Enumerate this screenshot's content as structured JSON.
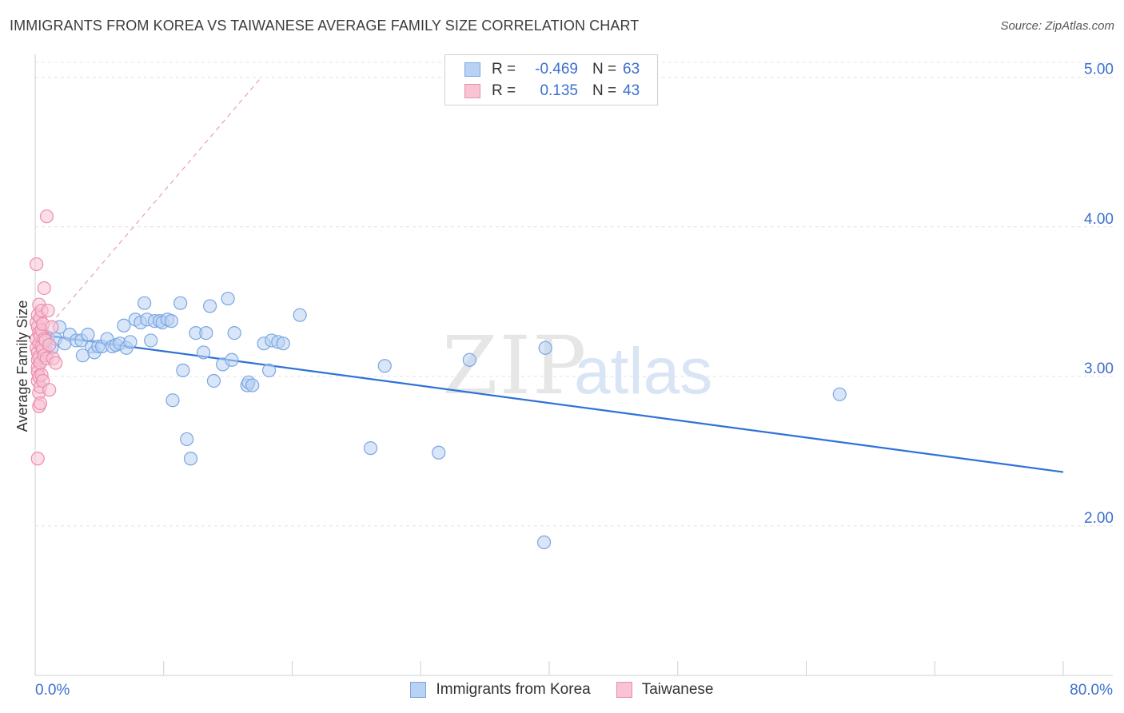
{
  "title": "IMMIGRANTS FROM KOREA VS TAIWANESE AVERAGE FAMILY SIZE CORRELATION CHART",
  "source": "Source: ZipAtlas.com",
  "watermark": {
    "zip": "ZIP",
    "atlas": "atlas"
  },
  "colors": {
    "blue_fill": "#b9d1f3",
    "blue_stroke": "#7aa6e3",
    "blue_line": "#2f72d6",
    "pink_fill": "#f8c3d3",
    "pink_stroke": "#ec8daf",
    "pink_line": "#e8a0b8",
    "axis_text": "#3b6fd0",
    "grid": "#e4e4e4"
  },
  "legend": {
    "rows": [
      {
        "r_label": "R =",
        "r_value": "-0.469",
        "n_label": "N =",
        "n_value": "63"
      },
      {
        "r_label": "R =",
        "r_value": "0.135",
        "n_label": "N =",
        "n_value": "43"
      }
    ]
  },
  "bottom_legend": [
    "Immigrants from Korea",
    "Taiwanese"
  ],
  "chart_data": {
    "type": "scatter",
    "title": "IMMIGRANTS FROM KOREA VS TAIWANESE AVERAGE FAMILY SIZE CORRELATION CHART",
    "xlabel": "",
    "ylabel": "Average Family Size",
    "xlim": [
      0,
      80
    ],
    "ylim": [
      1.0,
      5.1
    ],
    "x_tick_labels": [
      "0.0%",
      "80.0%"
    ],
    "y_ticks": [
      2.0,
      3.0,
      4.0,
      5.0
    ],
    "y_tick_labels": [
      "2.00",
      "3.00",
      "4.00",
      "5.00"
    ],
    "series": [
      {
        "name": "Immigrants from Korea",
        "trend": {
          "x": [
            0.3,
            80
          ],
          "y": [
            3.28,
            2.36
          ]
        },
        "points": [
          [
            0.6,
            3.27
          ],
          [
            0.8,
            3.18
          ],
          [
            1.0,
            3.26
          ],
          [
            1.3,
            3.19
          ],
          [
            1.6,
            3.25
          ],
          [
            1.9,
            3.33
          ],
          [
            2.3,
            3.22
          ],
          [
            2.7,
            3.28
          ],
          [
            3.2,
            3.24
          ],
          [
            3.6,
            3.24
          ],
          [
            3.7,
            3.14
          ],
          [
            4.1,
            3.28
          ],
          [
            4.4,
            3.2
          ],
          [
            4.6,
            3.16
          ],
          [
            4.9,
            3.2
          ],
          [
            5.2,
            3.2
          ],
          [
            5.6,
            3.25
          ],
          [
            6.0,
            3.2
          ],
          [
            6.3,
            3.21
          ],
          [
            6.6,
            3.22
          ],
          [
            6.9,
            3.34
          ],
          [
            7.1,
            3.19
          ],
          [
            7.4,
            3.23
          ],
          [
            7.8,
            3.38
          ],
          [
            8.2,
            3.36
          ],
          [
            8.5,
            3.49
          ],
          [
            8.7,
            3.38
          ],
          [
            9.0,
            3.24
          ],
          [
            9.3,
            3.37
          ],
          [
            9.7,
            3.37
          ],
          [
            9.9,
            3.36
          ],
          [
            10.3,
            3.38
          ],
          [
            10.6,
            3.37
          ],
          [
            10.7,
            2.84
          ],
          [
            11.3,
            3.49
          ],
          [
            11.5,
            3.04
          ],
          [
            11.8,
            2.58
          ],
          [
            12.1,
            2.45
          ],
          [
            12.5,
            3.29
          ],
          [
            13.1,
            3.16
          ],
          [
            13.3,
            3.29
          ],
          [
            13.6,
            3.47
          ],
          [
            13.9,
            2.97
          ],
          [
            14.6,
            3.08
          ],
          [
            15.0,
            3.52
          ],
          [
            15.3,
            3.11
          ],
          [
            15.5,
            3.29
          ],
          [
            16.5,
            2.94
          ],
          [
            16.6,
            2.96
          ],
          [
            16.9,
            2.94
          ],
          [
            17.8,
            3.22
          ],
          [
            18.2,
            3.04
          ],
          [
            18.4,
            3.24
          ],
          [
            18.9,
            3.23
          ],
          [
            19.3,
            3.22
          ],
          [
            20.6,
            3.41
          ],
          [
            26.1,
            2.52
          ],
          [
            27.2,
            3.07
          ],
          [
            31.4,
            2.49
          ],
          [
            33.8,
            3.11
          ],
          [
            39.6,
            1.89
          ],
          [
            39.7,
            3.19
          ],
          [
            62.6,
            2.88
          ]
        ]
      },
      {
        "name": "Taiwanese",
        "trend": {
          "x": [
            1.2,
            17.6
          ],
          "y": [
            3.35,
            5.0
          ]
        },
        "points": [
          [
            0.1,
            3.75
          ],
          [
            0.1,
            3.36
          ],
          [
            0.1,
            3.25
          ],
          [
            0.1,
            3.19
          ],
          [
            0.2,
            3.41
          ],
          [
            0.2,
            3.33
          ],
          [
            0.2,
            3.16
          ],
          [
            0.2,
            3.11
          ],
          [
            0.2,
            3.06
          ],
          [
            0.2,
            3.03
          ],
          [
            0.2,
            2.97
          ],
          [
            0.2,
            2.45
          ],
          [
            0.3,
            3.48
          ],
          [
            0.3,
            3.29
          ],
          [
            0.3,
            3.22
          ],
          [
            0.3,
            3.13
          ],
          [
            0.3,
            3.0
          ],
          [
            0.3,
            2.89
          ],
          [
            0.3,
            2.8
          ],
          [
            0.4,
            3.39
          ],
          [
            0.4,
            3.27
          ],
          [
            0.4,
            3.09
          ],
          [
            0.4,
            2.93
          ],
          [
            0.4,
            2.82
          ],
          [
            0.5,
            3.44
          ],
          [
            0.5,
            3.31
          ],
          [
            0.5,
            3.2
          ],
          [
            0.5,
            3.01
          ],
          [
            0.6,
            3.35
          ],
          [
            0.6,
            3.18
          ],
          [
            0.6,
            2.97
          ],
          [
            0.7,
            3.59
          ],
          [
            0.7,
            3.25
          ],
          [
            0.7,
            3.14
          ],
          [
            0.8,
            3.24
          ],
          [
            0.9,
            3.12
          ],
          [
            0.9,
            4.07
          ],
          [
            1.0,
            3.44
          ],
          [
            1.1,
            3.21
          ],
          [
            1.1,
            2.91
          ],
          [
            1.3,
            3.33
          ],
          [
            1.4,
            3.12
          ],
          [
            1.6,
            3.09
          ]
        ]
      }
    ]
  }
}
